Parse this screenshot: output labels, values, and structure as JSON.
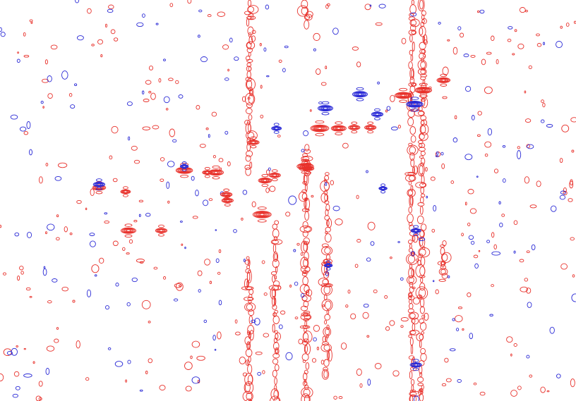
{
  "chart_data": {
    "type": "contour",
    "title": "",
    "xlabel": "",
    "ylabel": "",
    "colors": {
      "positive": "#e8322c",
      "negative": "#2b2bd6",
      "background": "#ffffff"
    },
    "series": [
      {
        "sign": "positive",
        "peaks": [
          {
            "x": 0.455,
            "y": 0.535,
            "i": 1.0
          },
          {
            "x": 0.32,
            "y": 0.425,
            "i": 0.9
          },
          {
            "x": 0.375,
            "y": 0.43,
            "i": 0.8
          },
          {
            "x": 0.53,
            "y": 0.415,
            "i": 0.9
          },
          {
            "x": 0.555,
            "y": 0.32,
            "i": 1.0
          },
          {
            "x": 0.588,
            "y": 0.32,
            "i": 0.8
          },
          {
            "x": 0.615,
            "y": 0.318,
            "i": 0.6
          },
          {
            "x": 0.643,
            "y": 0.318,
            "i": 0.6
          },
          {
            "x": 0.7,
            "y": 0.238,
            "i": 0.9
          },
          {
            "x": 0.735,
            "y": 0.225,
            "i": 0.9
          },
          {
            "x": 0.77,
            "y": 0.2,
            "i": 0.7
          },
          {
            "x": 0.223,
            "y": 0.575,
            "i": 0.8
          },
          {
            "x": 0.28,
            "y": 0.575,
            "i": 0.6
          },
          {
            "x": 0.393,
            "y": 0.485,
            "i": 0.6
          },
          {
            "x": 0.46,
            "y": 0.45,
            "i": 0.7
          },
          {
            "x": 0.477,
            "y": 0.437,
            "i": 0.6
          },
          {
            "x": 0.44,
            "y": 0.355,
            "i": 0.6
          },
          {
            "x": 0.172,
            "y": 0.468,
            "i": 0.7
          },
          {
            "x": 0.218,
            "y": 0.478,
            "i": 0.5
          },
          {
            "x": 0.395,
            "y": 0.5,
            "i": 0.6
          },
          {
            "x": 0.36,
            "y": 0.43,
            "i": 0.5
          },
          {
            "x": 0.535,
            "y": 0.42,
            "i": 0.6
          }
        ]
      },
      {
        "sign": "negative",
        "peaks": [
          {
            "x": 0.565,
            "y": 0.27,
            "i": 0.8
          },
          {
            "x": 0.625,
            "y": 0.235,
            "i": 0.8
          },
          {
            "x": 0.655,
            "y": 0.285,
            "i": 0.6
          },
          {
            "x": 0.72,
            "y": 0.26,
            "i": 0.9
          },
          {
            "x": 0.172,
            "y": 0.46,
            "i": 0.6
          },
          {
            "x": 0.722,
            "y": 0.575,
            "i": 0.5
          },
          {
            "x": 0.722,
            "y": 0.91,
            "i": 0.6
          },
          {
            "x": 0.32,
            "y": 0.415,
            "i": 0.4
          },
          {
            "x": 0.48,
            "y": 0.32,
            "i": 0.5
          },
          {
            "x": 0.57,
            "y": 0.662,
            "i": 0.4
          },
          {
            "x": 0.665,
            "y": 0.47,
            "i": 0.4
          }
        ]
      }
    ],
    "streaks": [
      {
        "x": 0.433,
        "y0": 0.0,
        "y1": 0.42,
        "sign": "positive"
      },
      {
        "x": 0.433,
        "y0": 0.64,
        "y1": 1.0,
        "sign": "positive"
      },
      {
        "x": 0.531,
        "y0": 0.0,
        "y1": 0.07,
        "sign": "positive"
      },
      {
        "x": 0.531,
        "y0": 0.36,
        "y1": 1.0,
        "sign": "positive"
      },
      {
        "x": 0.567,
        "y0": 0.43,
        "y1": 0.93,
        "sign": "positive"
      },
      {
        "x": 0.715,
        "y0": 0.0,
        "y1": 1.0,
        "sign": "positive"
      },
      {
        "x": 0.733,
        "y0": 0.0,
        "y1": 1.0,
        "sign": "positive"
      },
      {
        "x": 0.77,
        "y0": 0.6,
        "y1": 0.7,
        "sign": "positive"
      },
      {
        "x": 0.478,
        "y0": 0.55,
        "y1": 1.0,
        "sign": "positive"
      }
    ],
    "noise": {
      "positive_count": 320,
      "negative_count": 170,
      "seed": 7
    }
  }
}
